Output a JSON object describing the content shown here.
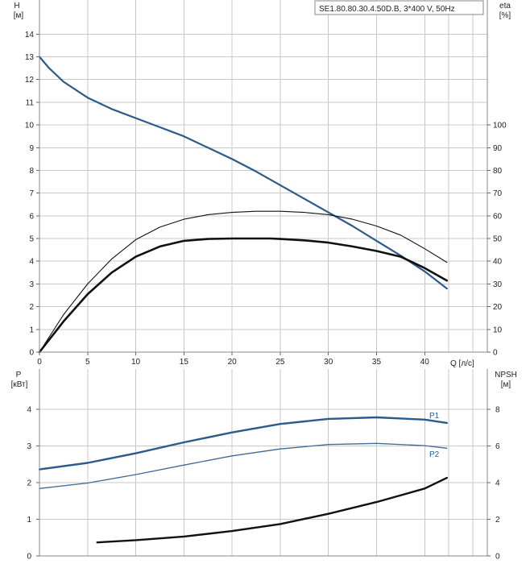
{
  "colors": {
    "head": "#2b5a8c",
    "eta": "#111111",
    "p1": "#2b5a8c",
    "p2": "#3d6a96",
    "npsh": "#111111"
  },
  "chart_data": [
    {
      "type": "line",
      "title": "SE1.80.80.30.4.50D.B, 3*400 V, 50Hz",
      "xlabel": "Q [л/с]",
      "ylabel": "H",
      "ylabel_unit": "[м]",
      "y2label": "eta",
      "y2label_unit": "[%]",
      "xlim": [
        0,
        46.5
      ],
      "ylim": [
        0,
        15.5
      ],
      "y2lim": [
        0,
        155
      ],
      "xticks": [
        0,
        5,
        10,
        15,
        20,
        25,
        30,
        35,
        40
      ],
      "yticks": [
        0,
        1,
        2,
        3,
        4,
        5,
        6,
        7,
        8,
        9,
        10,
        11,
        12,
        13,
        14
      ],
      "y2ticks": [
        0,
        10,
        20,
        30,
        40,
        50,
        60,
        70,
        80,
        90,
        100
      ],
      "grid": true,
      "series": [
        {
          "axis": "left",
          "x": [
            0,
            1,
            2.5,
            5,
            7.5,
            10,
            12.5,
            15,
            17.5,
            20,
            22.5,
            25,
            27.5,
            30,
            32.5,
            35,
            37.5,
            40,
            42.3
          ],
          "y": [
            13.0,
            12.5,
            11.9,
            11.2,
            10.7,
            10.3,
            9.9,
            9.5,
            9.0,
            8.5,
            7.95,
            7.35,
            6.75,
            6.15,
            5.55,
            4.9,
            4.25,
            3.55,
            2.8
          ]
        },
        {
          "axis": "right",
          "x": [
            0,
            2.5,
            5,
            7.5,
            10,
            12.5,
            15,
            17.5,
            20,
            22.5,
            24,
            25,
            27.5,
            30,
            32.5,
            35,
            37.5,
            40,
            42.3
          ],
          "y": [
            0,
            13.5,
            25.5,
            35,
            42,
            46.5,
            49,
            49.8,
            50,
            50,
            50,
            49.8,
            49.2,
            48.2,
            46.5,
            44.5,
            42,
            37,
            31.5
          ]
        },
        {
          "axis": "right",
          "x": [
            0,
            2.5,
            5,
            7.5,
            10,
            12.5,
            15,
            17.5,
            20,
            22.5,
            24,
            25,
            27.5,
            30,
            32.5,
            35,
            37.5,
            40,
            42.3
          ],
          "y": [
            0,
            16.5,
            30,
            41,
            49.5,
            55,
            58.5,
            60.5,
            61.5,
            62,
            62,
            62,
            61.5,
            60.5,
            58.5,
            55.5,
            51.5,
            45.5,
            39.5
          ]
        }
      ]
    },
    {
      "type": "line",
      "xlabel": "",
      "ylabel": "P",
      "ylabel_unit": "[кВт]",
      "y2label": "NPSH",
      "y2label_unit": "[м]",
      "xlim": [
        0,
        46.5
      ],
      "ylim": [
        0,
        5.1
      ],
      "y2lim": [
        0,
        10.2
      ],
      "yticks": [
        0,
        1,
        2,
        3,
        4
      ],
      "y2ticks": [
        0,
        2,
        4,
        6,
        8
      ],
      "grid": true,
      "series": [
        {
          "name": "P1",
          "axis": "left",
          "x": [
            0,
            5,
            10,
            15,
            20,
            25,
            30,
            35,
            40,
            42.3
          ],
          "y": [
            2.36,
            2.54,
            2.8,
            3.1,
            3.37,
            3.6,
            3.74,
            3.78,
            3.72,
            3.63
          ]
        },
        {
          "name": "P2",
          "axis": "left",
          "x": [
            0,
            5,
            10,
            15,
            20,
            25,
            30,
            35,
            40,
            42.3
          ],
          "y": [
            1.84,
            1.99,
            2.22,
            2.48,
            2.73,
            2.92,
            3.04,
            3.07,
            3.01,
            2.94
          ]
        },
        {
          "axis": "right",
          "x": [
            6,
            10,
            15,
            20,
            25,
            30,
            35,
            40,
            42.3
          ],
          "y": [
            0.74,
            0.86,
            1.06,
            1.36,
            1.74,
            2.3,
            2.94,
            3.68,
            4.26
          ]
        }
      ]
    }
  ]
}
